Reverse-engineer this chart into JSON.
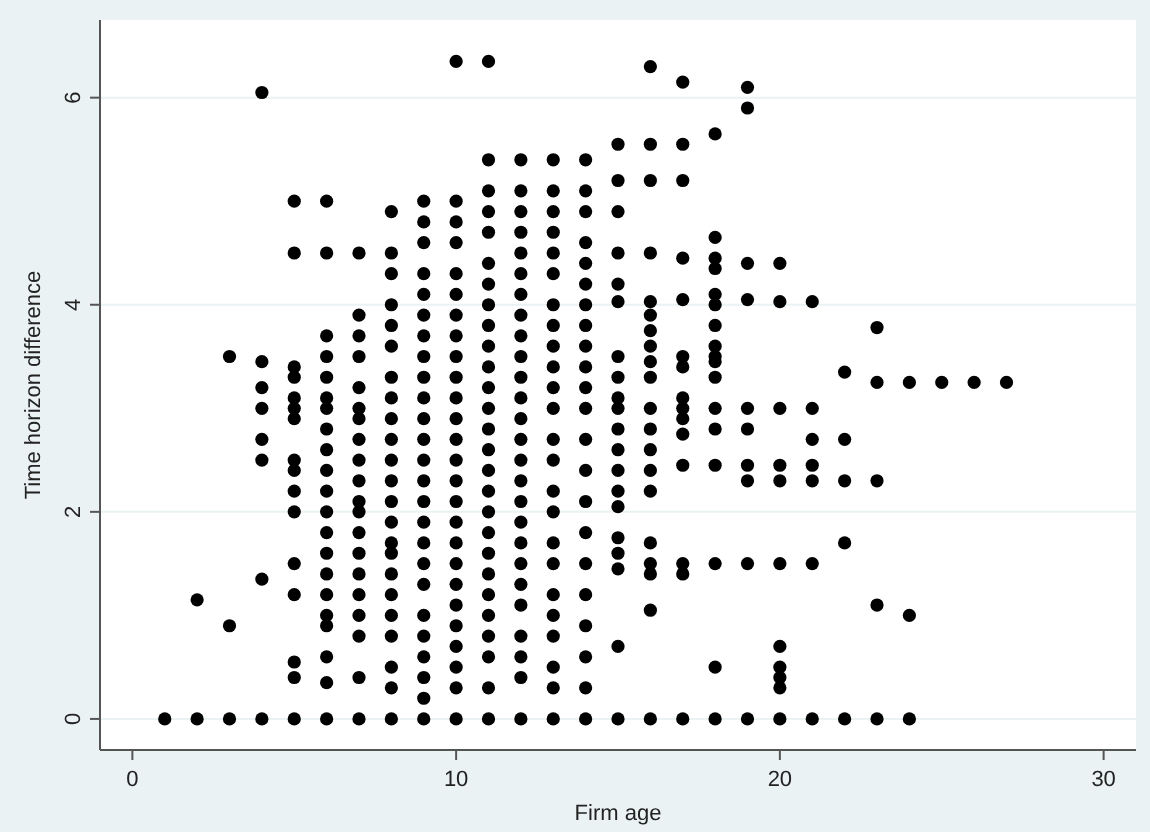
{
  "chart_data": {
    "type": "scatter",
    "xlabel": "Firm age",
    "ylabel": "Time horizon difference",
    "xlim": [
      -1,
      31
    ],
    "ylim": [
      -0.3,
      6.75
    ],
    "xticks": [
      0,
      10,
      20,
      30
    ],
    "yticks": [
      0,
      2,
      4,
      6
    ],
    "grid": "y",
    "marker": "circle",
    "color": "#000000",
    "x": [
      1,
      2,
      2,
      3,
      3,
      3,
      4,
      4,
      4,
      4,
      4,
      4,
      4,
      4,
      5,
      5,
      5,
      5,
      5,
      5,
      5,
      5,
      5,
      5,
      5,
      5,
      5,
      5,
      5,
      5,
      6,
      6,
      6,
      6,
      6,
      6,
      6,
      6,
      6,
      6,
      6,
      6,
      6,
      6,
      6,
      6,
      6,
      6,
      6,
      6,
      6,
      7,
      7,
      7,
      7,
      7,
      7,
      7,
      7,
      7,
      7,
      7,
      7,
      7,
      7,
      7,
      7,
      7,
      7,
      7,
      7,
      8,
      8,
      8,
      8,
      8,
      8,
      8,
      8,
      8,
      8,
      8,
      8,
      8,
      8,
      8,
      8,
      8,
      8,
      8,
      8,
      8,
      8,
      8,
      9,
      9,
      9,
      9,
      9,
      9,
      9,
      9,
      9,
      9,
      9,
      9,
      9,
      9,
      9,
      9,
      9,
      9,
      9,
      9,
      9,
      9,
      9,
      9,
      9,
      10,
      10,
      10,
      10,
      10,
      10,
      10,
      10,
      10,
      10,
      10,
      10,
      10,
      10,
      10,
      10,
      10,
      10,
      10,
      10,
      10,
      10,
      10,
      10,
      10,
      10,
      11,
      11,
      11,
      11,
      11,
      11,
      11,
      11,
      11,
      11,
      11,
      11,
      11,
      11,
      11,
      11,
      11,
      11,
      11,
      11,
      11,
      11,
      11,
      11,
      11,
      11,
      11,
      12,
      12,
      12,
      12,
      12,
      12,
      12,
      12,
      12,
      12,
      12,
      12,
      12,
      12,
      12,
      12,
      12,
      12,
      12,
      12,
      12,
      12,
      12,
      12,
      12,
      12,
      13,
      13,
      13,
      13,
      13,
      13,
      13,
      13,
      13,
      13,
      13,
      13,
      13,
      13,
      13,
      13,
      13,
      13,
      13,
      13,
      13,
      13,
      13,
      13,
      14,
      14,
      14,
      14,
      14,
      14,
      14,
      14,
      14,
      14,
      14,
      14,
      14,
      14,
      14,
      14,
      14,
      14,
      14,
      14,
      14,
      14,
      15,
      15,
      15,
      15,
      15,
      15,
      15,
      15,
      15,
      15,
      15,
      15,
      15,
      15,
      15,
      15,
      15,
      15,
      15,
      15,
      16,
      16,
      16,
      16,
      16,
      16,
      16,
      16,
      16,
      16,
      16,
      16,
      16,
      16,
      16,
      16,
      16,
      16,
      16,
      16,
      17,
      17,
      17,
      17,
      17,
      17,
      17,
      17,
      17,
      17,
      17,
      17,
      17,
      17,
      17,
      18,
      18,
      18,
      18,
      18,
      18,
      18,
      18,
      18,
      18,
      18,
      18,
      18,
      18,
      18,
      18,
      18,
      19,
      19,
      19,
      19,
      19,
      19,
      19,
      19,
      19,
      19,
      20,
      20,
      20,
      20,
      20,
      20,
      20,
      20,
      20,
      20,
      20,
      21,
      21,
      21,
      21,
      21,
      21,
      21,
      22,
      22,
      22,
      22,
      22,
      23,
      23,
      23,
      23,
      23,
      24,
      24,
      24,
      25,
      26,
      27
    ],
    "values": [
      0,
      0,
      1.15,
      0,
      0.9,
      3.5,
      0,
      1.35,
      2.5,
      2.7,
      3.0,
      3.2,
      3.45,
      6.05,
      0,
      0.4,
      0.55,
      1.2,
      1.5,
      2.0,
      2.2,
      2.4,
      2.5,
      2.9,
      3.0,
      3.1,
      3.3,
      3.4,
      4.5,
      5.0,
      0,
      0.35,
      0.6,
      0.9,
      1.0,
      1.2,
      1.4,
      1.6,
      1.8,
      2.0,
      2.2,
      2.4,
      2.6,
      2.8,
      3.0,
      3.1,
      3.3,
      3.5,
      3.7,
      4.5,
      5.0,
      0,
      0.4,
      0.8,
      1.0,
      1.2,
      1.4,
      1.6,
      1.8,
      2.0,
      2.1,
      2.3,
      2.5,
      2.7,
      2.9,
      3.0,
      3.2,
      3.5,
      3.7,
      3.9,
      4.5,
      0,
      0.3,
      0.5,
      0.8,
      1.0,
      1.2,
      1.4,
      1.6,
      1.7,
      1.9,
      2.1,
      2.3,
      2.5,
      2.7,
      2.9,
      3.1,
      3.3,
      3.6,
      3.8,
      4.0,
      4.3,
      4.5,
      4.9,
      0,
      0.2,
      0.4,
      0.6,
      0.8,
      1.0,
      1.3,
      1.5,
      1.7,
      1.9,
      2.1,
      2.3,
      2.5,
      2.7,
      2.9,
      3.1,
      3.3,
      3.5,
      3.7,
      3.9,
      4.1,
      4.3,
      4.6,
      4.8,
      5.0,
      0,
      0.3,
      0.5,
      0.7,
      0.9,
      1.1,
      1.3,
      1.5,
      1.7,
      1.9,
      2.1,
      2.3,
      2.5,
      2.7,
      2.9,
      3.1,
      3.3,
      3.5,
      3.7,
      3.9,
      4.1,
      4.3,
      4.6,
      4.8,
      5.0,
      6.35,
      0,
      0.3,
      0.6,
      0.8,
      1.0,
      1.2,
      1.4,
      1.6,
      1.8,
      2.0,
      2.2,
      2.4,
      2.6,
      2.8,
      3.0,
      3.2,
      3.4,
      3.6,
      3.8,
      4.0,
      4.2,
      4.4,
      4.7,
      4.9,
      5.1,
      5.4,
      6.35,
      0,
      0.4,
      0.6,
      0.8,
      1.1,
      1.3,
      1.5,
      1.7,
      1.9,
      2.1,
      2.3,
      2.5,
      2.7,
      2.9,
      3.1,
      3.3,
      3.5,
      3.7,
      3.9,
      4.1,
      4.3,
      4.5,
      4.7,
      4.9,
      5.1,
      5.4,
      0,
      0.3,
      0.5,
      0.8,
      1.0,
      1.2,
      1.5,
      1.7,
      2.0,
      2.2,
      2.5,
      2.7,
      3.0,
      3.2,
      3.4,
      3.6,
      3.8,
      4.0,
      4.3,
      4.5,
      4.7,
      4.9,
      5.1,
      5.4,
      0,
      0.3,
      0.6,
      0.9,
      1.2,
      1.5,
      1.8,
      2.1,
      2.4,
      2.7,
      3.0,
      3.2,
      3.4,
      3.6,
      3.8,
      4.0,
      4.2,
      4.4,
      4.6,
      4.9,
      5.1,
      5.4,
      0,
      0.7,
      1.45,
      1.6,
      1.75,
      2.05,
      2.2,
      2.4,
      2.6,
      2.8,
      3.0,
      3.1,
      3.3,
      3.5,
      4.03,
      4.2,
      4.5,
      4.9,
      5.2,
      5.55,
      0,
      1.05,
      1.4,
      1.5,
      1.7,
      2.2,
      2.4,
      2.6,
      2.8,
      3.0,
      3.3,
      3.45,
      3.6,
      3.75,
      3.9,
      4.03,
      4.5,
      5.2,
      5.55,
      6.3,
      0,
      1.4,
      1.5,
      2.45,
      2.75,
      2.9,
      3.0,
      3.1,
      3.4,
      3.5,
      4.05,
      4.45,
      5.2,
      5.55,
      6.15,
      0,
      0.5,
      1.5,
      2.45,
      2.8,
      3.0,
      3.3,
      3.45,
      3.5,
      3.6,
      3.8,
      4.0,
      4.1,
      4.35,
      4.45,
      4.65,
      5.65,
      0,
      1.5,
      2.3,
      2.45,
      2.8,
      3.0,
      4.05,
      4.4,
      5.9,
      6.1,
      0,
      0.3,
      0.4,
      0.5,
      0.7,
      1.5,
      2.3,
      2.45,
      3.0,
      4.03,
      4.4,
      0,
      1.5,
      2.3,
      2.45,
      2.7,
      3.0,
      4.03,
      0,
      1.7,
      2.3,
      2.7,
      3.35,
      0,
      1.1,
      2.3,
      3.25,
      3.78,
      0,
      1.0,
      3.25,
      3.25,
      3.25,
      3.25
    ]
  }
}
